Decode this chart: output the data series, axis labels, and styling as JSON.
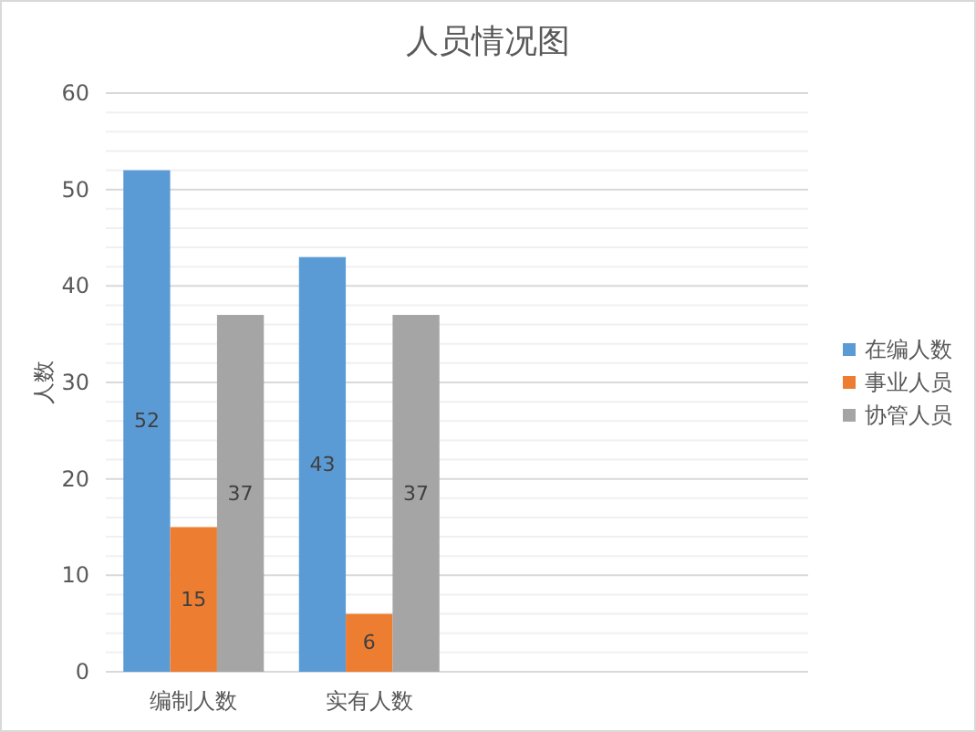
{
  "chart_data": {
    "type": "bar",
    "title": "人员情况图",
    "ylabel": "人数",
    "categories": [
      "编制人数",
      "实有人数",
      null,
      null
    ],
    "series": [
      {
        "name": "在编人数",
        "color": "#5b9bd5",
        "values": [
          52,
          43,
          null,
          null
        ]
      },
      {
        "name": "事业人员",
        "color": "#ed7d31",
        "values": [
          15,
          6,
          null,
          null
        ]
      },
      {
        "name": "协管人员",
        "color": "#a5a5a5",
        "values": [
          37,
          37,
          null,
          null
        ]
      }
    ],
    "ylim": [
      0,
      60
    ],
    "yticks": [
      0,
      {
        "value": 2,
        "label": null
      },
      {
        "value": 4,
        "label": null
      },
      {
        "value": 6,
        "label": null
      },
      {
        "value": 8,
        "label": null
      },
      10,
      {
        "value": 12,
        "label": null
      },
      {
        "value": 14,
        "label": null
      },
      {
        "value": 16,
        "label": null
      },
      {
        "value": 18,
        "label": null
      },
      20,
      {
        "value": 22,
        "label": null
      },
      {
        "value": 24,
        "label": null
      },
      {
        "value": 26,
        "label": null
      },
      {
        "value": 28,
        "label": null
      },
      30,
      {
        "value": 32,
        "label": null
      },
      {
        "value": 34,
        "label": null
      },
      {
        "value": 36,
        "label": null
      },
      {
        "value": 38,
        "label": null
      },
      40,
      {
        "value": 42,
        "label": null
      },
      {
        "value": 44,
        "label": null
      },
      {
        "value": 46,
        "label": null
      },
      {
        "value": 48,
        "label": null
      },
      50,
      {
        "value": 52,
        "label": null
      },
      {
        "value": 54,
        "label": null
      },
      {
        "value": 56,
        "label": null
      },
      {
        "value": 58,
        "label": null
      },
      60
    ],
    "grid": "y",
    "legend": "right",
    "data_labels": true
  }
}
